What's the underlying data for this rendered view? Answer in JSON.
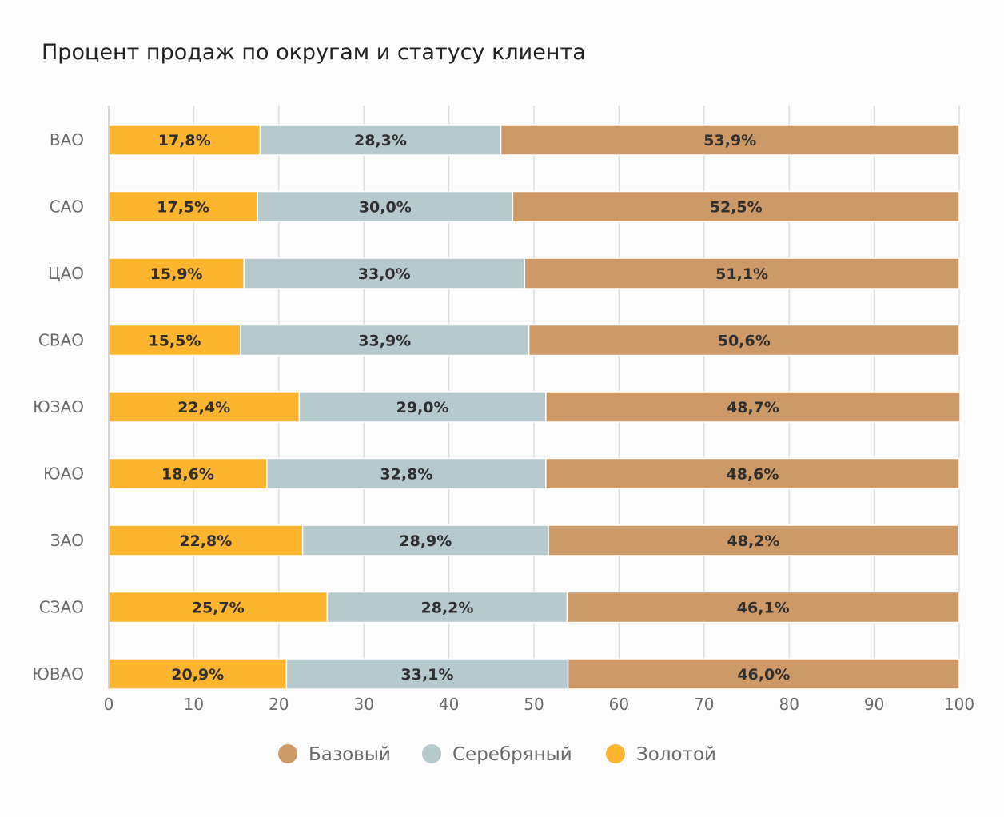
{
  "title": "Процент продаж по округам и статусу клиента",
  "chart_data": {
    "type": "bar",
    "orientation": "horizontal",
    "stacked": true,
    "title": "Процент продаж по округам и статусу клиента",
    "categories": [
      "ВАО",
      "САО",
      "ЦАО",
      "СВАО",
      "ЮЗАО",
      "ЮАО",
      "ЗАО",
      "СЗАО",
      "ЮВАО"
    ],
    "series": [
      {
        "name": "Золотой",
        "color": "#fdb52f",
        "values": [
          17.8,
          17.5,
          15.9,
          15.5,
          22.4,
          18.6,
          22.8,
          25.7,
          20.9
        ],
        "labels": [
          "17,8%",
          "17,5%",
          "15,9%",
          "15,5%",
          "22,4%",
          "18,6%",
          "22,8%",
          "25,7%",
          "20,9%"
        ]
      },
      {
        "name": "Серебряный",
        "color": "#b6c9cc",
        "values": [
          28.3,
          30.0,
          33.0,
          33.9,
          29.0,
          32.8,
          28.9,
          28.2,
          33.1
        ],
        "labels": [
          "28,3%",
          "30,0%",
          "33,0%",
          "33,9%",
          "29,0%",
          "32,8%",
          "28,9%",
          "28,2%",
          "33,1%"
        ]
      },
      {
        "name": "Базовый",
        "color": "#cd9a67",
        "values": [
          53.9,
          52.5,
          51.1,
          50.6,
          48.7,
          48.6,
          48.2,
          46.1,
          46.0
        ],
        "labels": [
          "53,9%",
          "52,5%",
          "51,1%",
          "50,6%",
          "48,7%",
          "48,6%",
          "48,2%",
          "46,1%",
          "46,0%"
        ]
      }
    ],
    "xlim": [
      0,
      100
    ],
    "xticks": [
      "0",
      "10",
      "20",
      "30",
      "40",
      "50",
      "60",
      "70",
      "80",
      "90",
      "100"
    ],
    "grid": true,
    "legend_position": "bottom",
    "legend": [
      {
        "name": "Базовый",
        "color": "#cd9a67"
      },
      {
        "name": "Серебряный",
        "color": "#b6c9cc"
      },
      {
        "name": "Золотой",
        "color": "#fdb52f"
      }
    ]
  }
}
